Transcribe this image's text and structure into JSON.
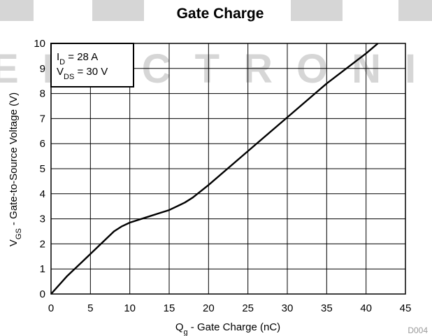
{
  "watermark": "ELECTRONIC",
  "figure_code": "D004",
  "chart_data": {
    "type": "line",
    "title": "Gate Charge",
    "xlabel": {
      "main": "Q",
      "sub": "g",
      "rest": " - Gate Charge (nC)"
    },
    "ylabel": {
      "main": "V",
      "sub": "GS",
      "rest": " - Gate-to-Source Voltage (V)"
    },
    "xlim": [
      0,
      45
    ],
    "ylim": [
      0,
      10
    ],
    "xticks": [
      0,
      5,
      10,
      15,
      20,
      25,
      30,
      35,
      40,
      45
    ],
    "yticks": [
      0,
      1,
      2,
      3,
      4,
      5,
      6,
      7,
      8,
      9,
      10
    ],
    "grid": true,
    "legend_placement": "top-left",
    "conditions": [
      {
        "main": "I",
        "sub": "D",
        "rest": " = 28 A"
      },
      {
        "main": "V",
        "sub": "DS",
        "rest": " = 30 V"
      }
    ],
    "series": [
      {
        "x": [
          0,
          2,
          4,
          6,
          8,
          9,
          10,
          12,
          14,
          15,
          16,
          17,
          18,
          20,
          25,
          30,
          35,
          40,
          41.5
        ],
        "y": [
          0,
          0.7,
          1.3,
          1.9,
          2.5,
          2.7,
          2.85,
          3.05,
          3.25,
          3.35,
          3.5,
          3.65,
          3.85,
          4.35,
          5.7,
          7.05,
          8.4,
          9.6,
          10
        ]
      }
    ]
  }
}
